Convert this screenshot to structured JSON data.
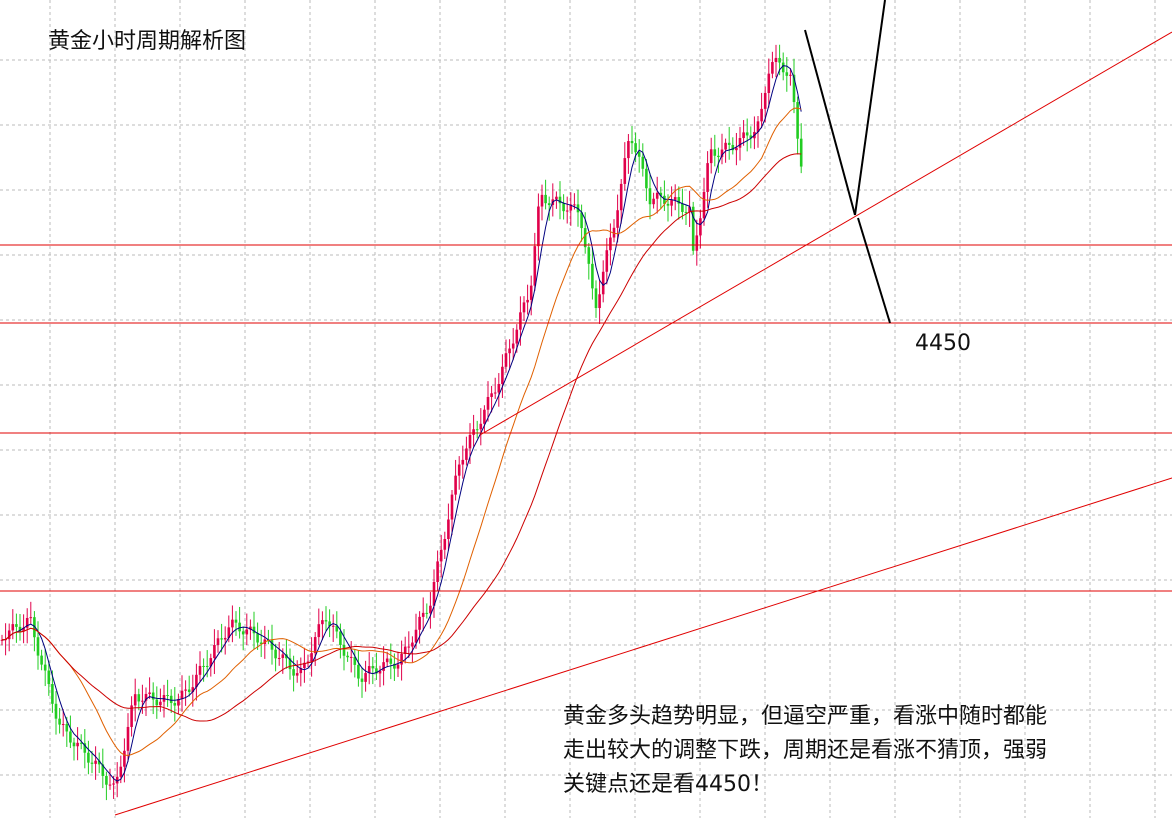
{
  "header": {
    "title": "黄金小时周期解析图"
  },
  "annotations": {
    "level_label": "4450",
    "comment": [
      "黄金多头趋势明显，但逼空严重，看涨中随时都能",
      "走出较大的调整下跌，周期还是看涨不猜顶，强弱",
      "关键点还是看4450！"
    ]
  }
}
